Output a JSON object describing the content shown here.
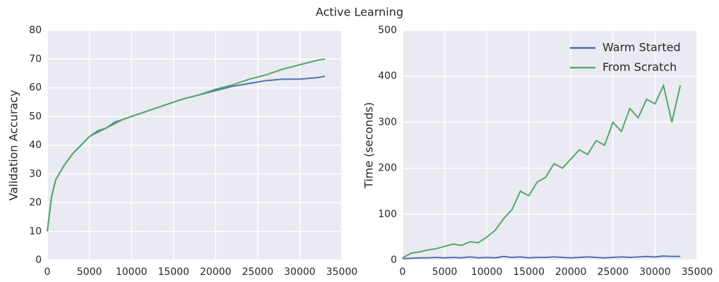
{
  "title": "Active Learning",
  "chart_data": [
    {
      "type": "line",
      "ylabel": "Validation Accuracy",
      "x": [
        0,
        500,
        1000,
        2000,
        3000,
        4000,
        5000,
        6000,
        7000,
        8000,
        9000,
        10000,
        12000,
        14000,
        16000,
        18000,
        20000,
        22000,
        24000,
        26000,
        28000,
        30000,
        32000,
        33000
      ],
      "series": [
        {
          "color": "#4c72b0",
          "values": [
            10,
            22,
            28,
            33,
            37,
            40,
            43,
            45,
            46,
            48,
            49,
            50,
            52,
            54,
            56,
            57.5,
            59,
            60.5,
            61.5,
            62.5,
            63,
            63,
            63.5,
            64
          ]
        },
        {
          "color": "#55a868",
          "values": [
            10,
            22,
            28,
            33,
            37,
            40,
            43,
            44.5,
            46,
            47.5,
            49,
            50,
            52,
            54,
            56,
            57.5,
            59.5,
            61,
            63,
            64.5,
            66.5,
            68,
            69.5,
            70
          ]
        }
      ],
      "xlim": [
        0,
        35000
      ],
      "xticks": [
        0,
        5000,
        10000,
        15000,
        20000,
        25000,
        30000,
        35000
      ],
      "ylim": [
        0,
        80
      ],
      "yticks": [
        0,
        10,
        20,
        30,
        40,
        50,
        60,
        70,
        80
      ],
      "grid": true
    },
    {
      "type": "line",
      "ylabel": "Time (seconds)",
      "x": [
        0,
        1000,
        2000,
        3000,
        4000,
        5000,
        6000,
        7000,
        8000,
        9000,
        10000,
        11000,
        12000,
        13000,
        14000,
        15000,
        16000,
        17000,
        18000,
        19000,
        20000,
        21000,
        22000,
        23000,
        24000,
        25000,
        26000,
        27000,
        28000,
        29000,
        30000,
        31000,
        32000,
        33000
      ],
      "series": [
        {
          "name": "Warm Started",
          "color": "#4c72b0",
          "values": [
            3,
            4,
            5,
            5,
            6,
            5,
            6,
            5,
            7,
            5,
            6,
            5,
            8,
            6,
            7,
            5,
            6,
            6,
            7,
            6,
            5,
            6,
            7,
            6,
            5,
            6,
            7,
            6,
            7,
            8,
            7,
            9,
            8,
            8
          ]
        },
        {
          "name": "From Scratch",
          "color": "#55a868",
          "values": [
            5,
            15,
            18,
            22,
            25,
            30,
            35,
            32,
            40,
            38,
            50,
            65,
            90,
            110,
            150,
            140,
            170,
            180,
            210,
            200,
            220,
            240,
            230,
            260,
            250,
            300,
            280,
            330,
            310,
            350,
            340,
            380,
            300,
            380
          ]
        }
      ],
      "xlim": [
        0,
        35000
      ],
      "xticks": [
        0,
        5000,
        10000,
        15000,
        20000,
        25000,
        30000,
        35000
      ],
      "ylim": [
        0,
        500
      ],
      "yticks": [
        0,
        100,
        200,
        300,
        400,
        500
      ],
      "grid": true,
      "legend": "upper right"
    }
  ]
}
